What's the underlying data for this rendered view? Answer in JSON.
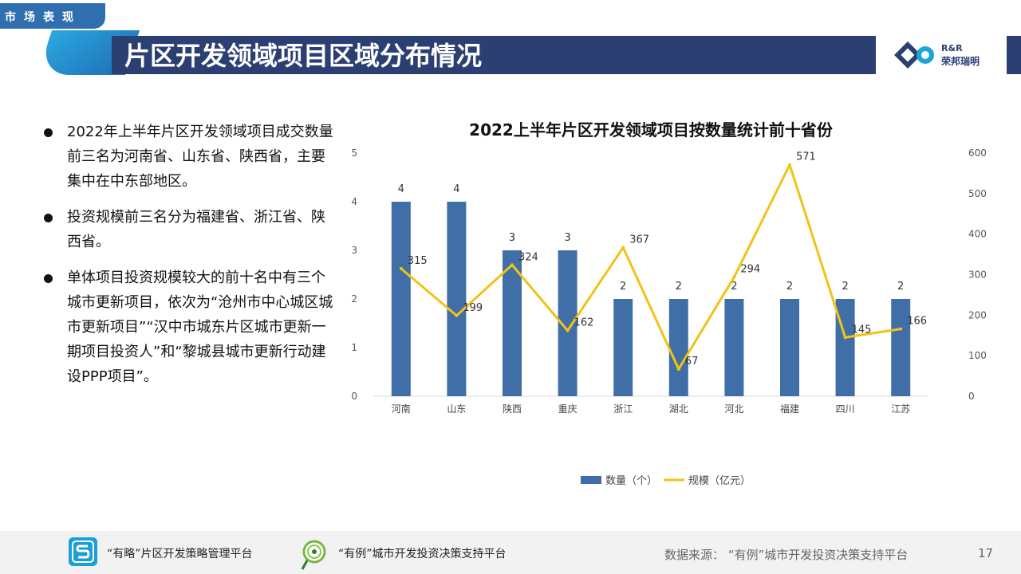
{
  "header": {
    "section_tag": "市场表现",
    "title": "片区开发领域项目区域分布情况",
    "logo_text_1": "R&R",
    "logo_text_2": "荣邦瑞明"
  },
  "bullets": [
    "2022年上半年片区开发领域项目成交数量前三名为河南省、山东省、陕西省，主要集中在中东部地区。",
    "投资规模前三名分为福建省、浙江省、陕西省。",
    "单体项目投资规模较大的前十名中有三个城市更新项目，依次为“沧州市中心城区城市更新项目”“汉中市城东片区城市更新一期项目投资人”和“黎城县城市更新行动建设PPP项目”。"
  ],
  "chart_data": {
    "type": "bar",
    "title": "2022上半年片区开发领域项目按数量统计前十省份",
    "categories": [
      "河南",
      "山东",
      "陕西",
      "重庆",
      "浙江",
      "湖北",
      "河北",
      "福建",
      "四川",
      "江苏"
    ],
    "series": [
      {
        "name": "数量（个）",
        "type": "bar",
        "axis": "left",
        "color": "#3f6fa6",
        "values": [
          4,
          4,
          3,
          3,
          2,
          2,
          2,
          2,
          2,
          2
        ]
      },
      {
        "name": "规模（亿元）",
        "type": "line",
        "axis": "right",
        "color": "#f2c314",
        "values": [
          315,
          199,
          324,
          162,
          367,
          67,
          294,
          571,
          145,
          166
        ]
      }
    ],
    "y_left": {
      "min": 0,
      "max": 5,
      "ticks": [
        0,
        1,
        2,
        3,
        4,
        5
      ]
    },
    "y_right": {
      "min": 0,
      "max": 600,
      "ticks": [
        0,
        100,
        200,
        300,
        400,
        500,
        600
      ]
    },
    "legend_position": "bottom",
    "grid": false
  },
  "footer": {
    "platform_1": "“有略”片区开发策略管理平台",
    "platform_2": "“有例”城市开发投资决策支持平台",
    "source": "数据来源：  “有例”城市开发投资决策支持平台",
    "page_number": "17"
  }
}
